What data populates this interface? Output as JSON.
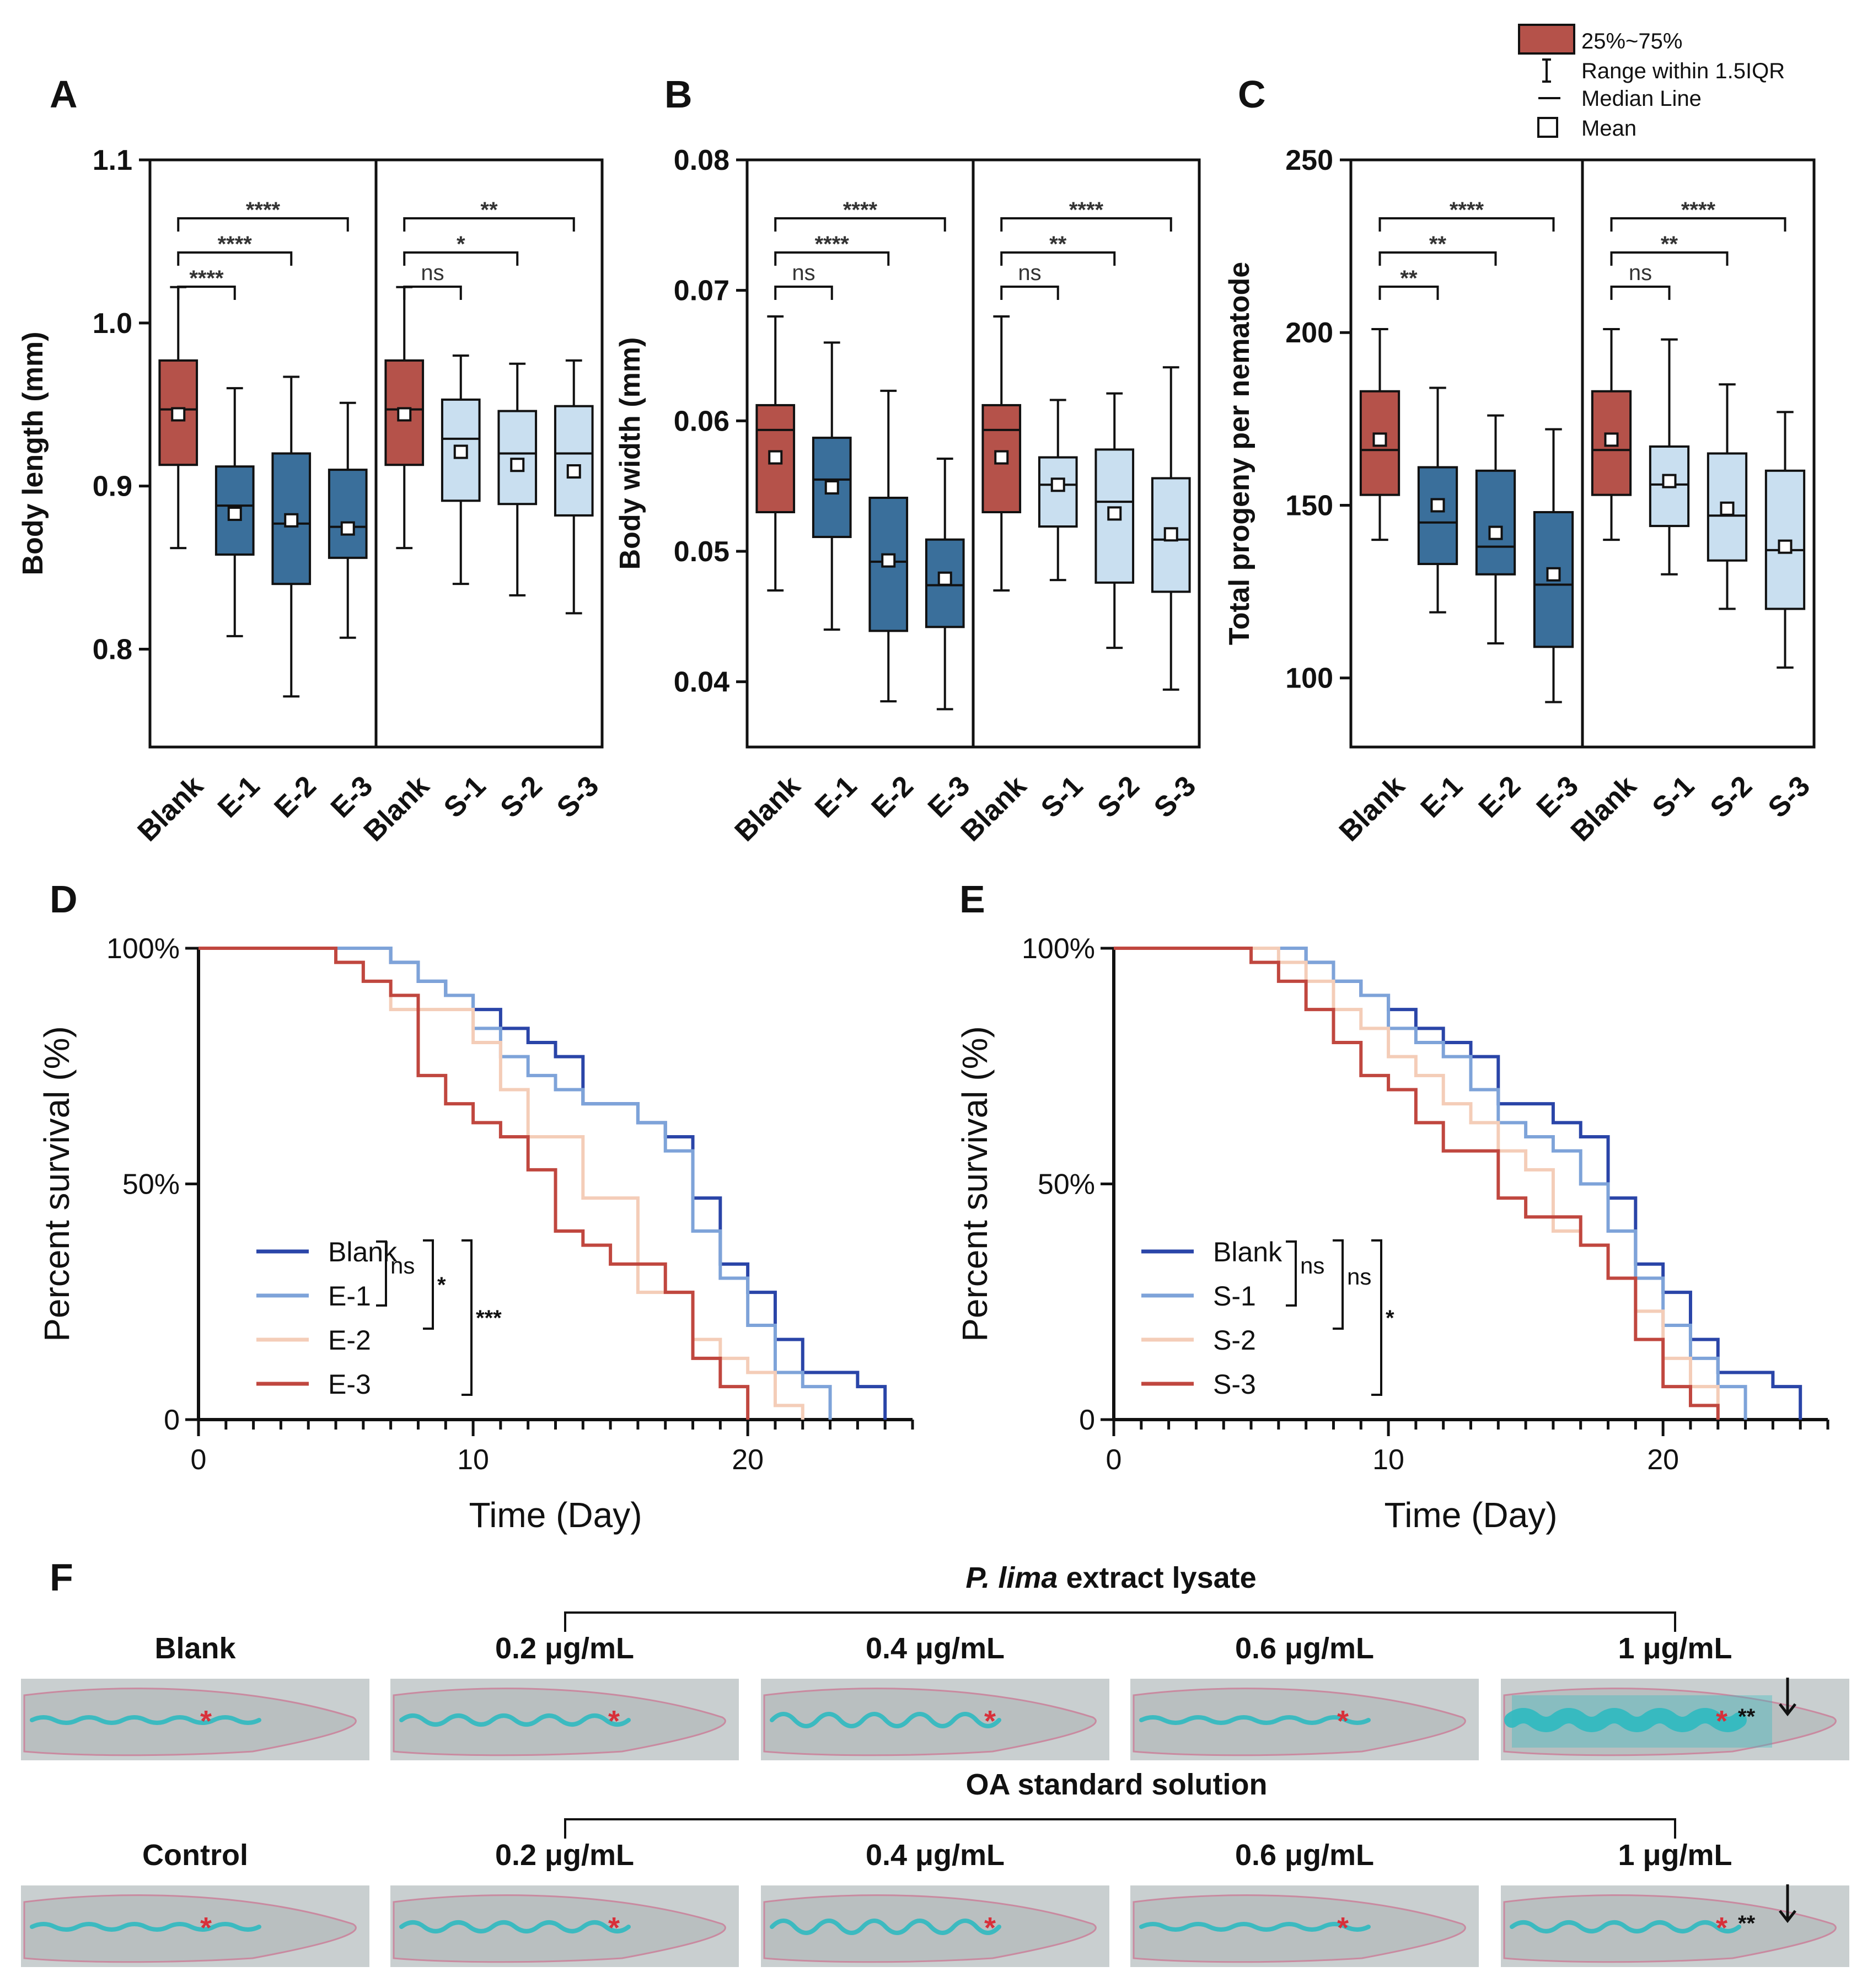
{
  "colors": {
    "blank": "#b5524a",
    "extract": "#3a6f9b",
    "standard": "#c9dff0",
    "survival_blank": "#2a45a8",
    "survival_1": "#7ea3d9",
    "survival_2": "#f4cdb8",
    "survival_3": "#c0473f",
    "micro_bg": "#c9cfd0",
    "micro_stain": "#2fb9c0",
    "micro_star": "#d8303a"
  },
  "legend": {
    "iqr": "25%~75%",
    "range": "Range within 1.5IQR",
    "median": "Median Line",
    "mean": "Mean"
  },
  "chart_data": [
    {
      "panel": "A",
      "type": "box",
      "ylabel": "Body length (mm)",
      "ylim": [
        0.74,
        1.1
      ],
      "yticks": [
        "1.1",
        "1.0",
        "0.9",
        "0.8"
      ],
      "ytick_values": [
        1.1,
        1.0,
        0.9,
        0.8
      ],
      "categories": [
        "Blank",
        "E-1",
        "E-2",
        "E-3",
        "Blank",
        "S-1",
        "S-2",
        "S-3"
      ],
      "groups": [
        "blank",
        "extract",
        "extract",
        "extract",
        "blank",
        "standard",
        "standard",
        "standard"
      ],
      "boxes": [
        {
          "min": 0.862,
          "q1": 0.913,
          "median": 0.947,
          "q3": 0.977,
          "max": 1.022,
          "mean": 0.944
        },
        {
          "min": 0.808,
          "q1": 0.858,
          "median": 0.888,
          "q3": 0.912,
          "max": 0.96,
          "mean": 0.883
        },
        {
          "min": 0.771,
          "q1": 0.84,
          "median": 0.877,
          "q3": 0.92,
          "max": 0.967,
          "mean": 0.879
        },
        {
          "min": 0.807,
          "q1": 0.856,
          "median": 0.875,
          "q3": 0.91,
          "max": 0.951,
          "mean": 0.874
        },
        {
          "min": 0.862,
          "q1": 0.913,
          "median": 0.947,
          "q3": 0.977,
          "max": 1.022,
          "mean": 0.944
        },
        {
          "min": 0.84,
          "q1": 0.891,
          "median": 0.929,
          "q3": 0.953,
          "max": 0.98,
          "mean": 0.921
        },
        {
          "min": 0.833,
          "q1": 0.889,
          "median": 0.92,
          "q3": 0.946,
          "max": 0.975,
          "mean": 0.913
        },
        {
          "min": 0.822,
          "q1": 0.882,
          "median": 0.92,
          "q3": 0.949,
          "max": 0.977,
          "mean": 0.909
        }
      ],
      "brackets": [
        {
          "from": 0,
          "to": 1,
          "label": "****",
          "level": 0
        },
        {
          "from": 0,
          "to": 2,
          "label": "****",
          "level": 1
        },
        {
          "from": 0,
          "to": 3,
          "label": "****",
          "level": 2
        },
        {
          "from": 4,
          "to": 5,
          "label": "ns",
          "level": 0
        },
        {
          "from": 4,
          "to": 6,
          "label": "*",
          "level": 1
        },
        {
          "from": 4,
          "to": 7,
          "label": "**",
          "level": 2
        }
      ]
    },
    {
      "panel": "B",
      "type": "box",
      "ylabel": "Body width (mm)",
      "ylim": [
        0.035,
        0.08
      ],
      "yticks": [
        "0.08",
        "0.07",
        "0.06",
        "0.05",
        "0.04"
      ],
      "ytick_values": [
        0.08,
        0.07,
        0.06,
        0.05,
        0.04
      ],
      "categories": [
        "Blank",
        "E-1",
        "E-2",
        "E-3",
        "Blank",
        "S-1",
        "S-2",
        "S-3"
      ],
      "groups": [
        "blank",
        "extract",
        "extract",
        "extract",
        "blank",
        "standard",
        "standard",
        "standard"
      ],
      "boxes": [
        {
          "min": 0.047,
          "q1": 0.053,
          "median": 0.0593,
          "q3": 0.0612,
          "max": 0.068,
          "mean": 0.0572
        },
        {
          "min": 0.044,
          "q1": 0.0511,
          "median": 0.0555,
          "q3": 0.0587,
          "max": 0.066,
          "mean": 0.0549
        },
        {
          "min": 0.0385,
          "q1": 0.0439,
          "median": 0.0492,
          "q3": 0.0541,
          "max": 0.0623,
          "mean": 0.0493
        },
        {
          "min": 0.0379,
          "q1": 0.0442,
          "median": 0.0474,
          "q3": 0.0509,
          "max": 0.0571,
          "mean": 0.0479
        },
        {
          "min": 0.047,
          "q1": 0.053,
          "median": 0.0593,
          "q3": 0.0612,
          "max": 0.068,
          "mean": 0.0572
        },
        {
          "min": 0.0478,
          "q1": 0.0519,
          "median": 0.0551,
          "q3": 0.0572,
          "max": 0.0616,
          "mean": 0.0551
        },
        {
          "min": 0.0426,
          "q1": 0.0476,
          "median": 0.0538,
          "q3": 0.0578,
          "max": 0.0621,
          "mean": 0.0529
        },
        {
          "min": 0.0394,
          "q1": 0.0469,
          "median": 0.0509,
          "q3": 0.0556,
          "max": 0.0641,
          "mean": 0.0513
        }
      ],
      "brackets": [
        {
          "from": 0,
          "to": 1,
          "label": "ns",
          "level": 0
        },
        {
          "from": 0,
          "to": 2,
          "label": "****",
          "level": 1
        },
        {
          "from": 0,
          "to": 3,
          "label": "****",
          "level": 2
        },
        {
          "from": 4,
          "to": 5,
          "label": "ns",
          "level": 0
        },
        {
          "from": 4,
          "to": 6,
          "label": "**",
          "level": 1
        },
        {
          "from": 4,
          "to": 7,
          "label": "****",
          "level": 2
        }
      ]
    },
    {
      "panel": "C",
      "type": "box",
      "ylabel": "Total progeny per nematode",
      "ylim": [
        80,
        250
      ],
      "yticks": [
        "250",
        "200",
        "150",
        "100"
      ],
      "ytick_values": [
        250,
        200,
        150,
        100
      ],
      "categories": [
        "Blank",
        "E-1",
        "E-2",
        "E-3",
        "Blank",
        "S-1",
        "S-2",
        "S-3"
      ],
      "groups": [
        "blank",
        "extract",
        "extract",
        "extract",
        "blank",
        "standard",
        "standard",
        "standard"
      ],
      "boxes": [
        {
          "min": 140,
          "q1": 153,
          "median": 166,
          "q3": 183,
          "max": 201,
          "mean": 169
        },
        {
          "min": 119,
          "q1": 133,
          "median": 145,
          "q3": 161,
          "max": 184,
          "mean": 150
        },
        {
          "min": 110,
          "q1": 130,
          "median": 138,
          "q3": 160,
          "max": 176,
          "mean": 142
        },
        {
          "min": 93,
          "q1": 109,
          "median": 127,
          "q3": 148,
          "max": 172,
          "mean": 130
        },
        {
          "min": 140,
          "q1": 153,
          "median": 166,
          "q3": 183,
          "max": 201,
          "mean": 169
        },
        {
          "min": 130,
          "q1": 144,
          "median": 156,
          "q3": 167,
          "max": 198,
          "mean": 157
        },
        {
          "min": 120,
          "q1": 134,
          "median": 147,
          "q3": 165,
          "max": 185,
          "mean": 149
        },
        {
          "min": 103,
          "q1": 120,
          "median": 137,
          "q3": 160,
          "max": 177,
          "mean": 138
        }
      ],
      "brackets": [
        {
          "from": 0,
          "to": 1,
          "label": "**",
          "level": 0
        },
        {
          "from": 0,
          "to": 2,
          "label": "**",
          "level": 1
        },
        {
          "from": 0,
          "to": 3,
          "label": "****",
          "level": 2
        },
        {
          "from": 4,
          "to": 5,
          "label": "ns",
          "level": 0
        },
        {
          "from": 4,
          "to": 6,
          "label": "**",
          "level": 1
        },
        {
          "from": 4,
          "to": 7,
          "label": "****",
          "level": 2
        }
      ]
    },
    {
      "panel": "D",
      "type": "line",
      "subtype": "kaplan-meier step",
      "xlabel": "Time (Day)",
      "ylabel": "Percent survival (%)",
      "xlim": [
        0,
        26
      ],
      "ylim": [
        0,
        100
      ],
      "xticks": [
        "0",
        "10",
        "20"
      ],
      "xtick_values": [
        0,
        10,
        20
      ],
      "yticks": [
        "0",
        "50%",
        "100%"
      ],
      "ytick_values": [
        0,
        50,
        100
      ],
      "series": [
        {
          "name": "Blank",
          "color_key": "survival_blank",
          "x": [
            0,
            7,
            8,
            9,
            10,
            11,
            12,
            13,
            14,
            16,
            17,
            18,
            19,
            20,
            21,
            22,
            23,
            24,
            25
          ],
          "y": [
            100,
            97,
            93,
            90,
            87,
            83,
            80,
            77,
            67,
            63,
            60,
            47,
            33,
            27,
            17,
            10,
            10,
            7,
            0
          ]
        },
        {
          "name": "E-1",
          "color_key": "survival_1",
          "x": [
            0,
            7,
            8,
            9,
            10,
            11,
            12,
            13,
            14,
            15,
            16,
            17,
            18,
            19,
            20,
            21,
            22,
            23
          ],
          "y": [
            100,
            97,
            93,
            90,
            83,
            77,
            73,
            70,
            67,
            67,
            63,
            57,
            40,
            30,
            20,
            10,
            7,
            0
          ]
        },
        {
          "name": "E-2",
          "color_key": "survival_2",
          "x": [
            0,
            5,
            6,
            7,
            8,
            9,
            10,
            11,
            12,
            13,
            14,
            15,
            16,
            17,
            18,
            19,
            20,
            21,
            22
          ],
          "y": [
            100,
            97,
            93,
            87,
            87,
            87,
            80,
            70,
            60,
            60,
            47,
            47,
            27,
            27,
            17,
            13,
            10,
            3,
            0
          ]
        },
        {
          "name": "E-3",
          "color_key": "survival_3",
          "x": [
            0,
            5,
            6,
            7,
            8,
            9,
            10,
            11,
            12,
            13,
            14,
            15,
            16,
            17,
            18,
            19,
            20
          ],
          "y": [
            100,
            97,
            93,
            90,
            73,
            67,
            63,
            60,
            53,
            40,
            37,
            33,
            33,
            27,
            13,
            7,
            0
          ]
        }
      ],
      "significance": [
        {
          "label": "ns",
          "from": "Blank",
          "to": "E-1"
        },
        {
          "label": "*",
          "from": "Blank",
          "to": "E-2"
        },
        {
          "label": "***",
          "from": "Blank",
          "to": "E-3"
        }
      ]
    },
    {
      "panel": "E",
      "type": "line",
      "subtype": "kaplan-meier step",
      "xlabel": "Time (Day)",
      "ylabel": "Percent survival (%)",
      "xlim": [
        0,
        26
      ],
      "ylim": [
        0,
        100
      ],
      "xticks": [
        "0",
        "10",
        "20"
      ],
      "xtick_values": [
        0,
        10,
        20
      ],
      "yticks": [
        "0",
        "50%",
        "100%"
      ],
      "ytick_values": [
        0,
        50,
        100
      ],
      "series": [
        {
          "name": "Blank",
          "color_key": "survival_blank",
          "x": [
            0,
            7,
            8,
            9,
            10,
            11,
            12,
            13,
            14,
            16,
            17,
            18,
            19,
            20,
            21,
            22,
            23,
            24,
            25
          ],
          "y": [
            100,
            97,
            93,
            90,
            87,
            83,
            80,
            77,
            67,
            63,
            60,
            47,
            33,
            27,
            17,
            10,
            10,
            7,
            0
          ]
        },
        {
          "name": "S-1",
          "color_key": "survival_1",
          "x": [
            0,
            7,
            8,
            9,
            10,
            11,
            12,
            13,
            14,
            15,
            16,
            17,
            18,
            19,
            20,
            21,
            22,
            23
          ],
          "y": [
            100,
            97,
            93,
            90,
            83,
            80,
            77,
            70,
            63,
            60,
            57,
            50,
            40,
            30,
            20,
            13,
            7,
            0
          ]
        },
        {
          "name": "S-2",
          "color_key": "survival_2",
          "x": [
            0,
            6,
            7,
            8,
            9,
            10,
            11,
            12,
            13,
            14,
            15,
            16,
            17,
            18,
            19,
            20,
            21,
            22
          ],
          "y": [
            100,
            97,
            93,
            87,
            83,
            77,
            73,
            67,
            63,
            57,
            53,
            40,
            37,
            30,
            23,
            13,
            7,
            0
          ]
        },
        {
          "name": "S-3",
          "color_key": "survival_3",
          "x": [
            0,
            5,
            6,
            7,
            8,
            9,
            10,
            11,
            12,
            13,
            14,
            15,
            16,
            17,
            18,
            19,
            20,
            21,
            22
          ],
          "y": [
            100,
            97,
            93,
            87,
            80,
            73,
            70,
            63,
            57,
            57,
            47,
            43,
            43,
            37,
            30,
            17,
            7,
            3,
            0
          ]
        }
      ],
      "significance": [
        {
          "label": "ns",
          "from": "Blank",
          "to": "S-1"
        },
        {
          "label": "ns",
          "from": "Blank",
          "to": "S-2"
        },
        {
          "label": "*",
          "from": "Blank",
          "to": "S-3"
        }
      ]
    }
  ],
  "panel_f": {
    "letter": "F",
    "top_bracket_title_italic": "P. lima",
    "top_bracket_title_rest": " extract lysate",
    "bottom_bracket_title": "OA standard solution",
    "top_labels": [
      "Blank",
      "0.2 μg/mL",
      "0.4 μg/mL",
      "0.6 μg/mL",
      "1 μg/mL"
    ],
    "bottom_labels": [
      "Control",
      "0.2 μg/mL",
      "0.4 μg/mL",
      "0.6 μg/mL",
      "1 μg/mL"
    ],
    "star_mark": "*",
    "double_star_mark": "**",
    "arrow_icon": "down-arrow-icon"
  }
}
